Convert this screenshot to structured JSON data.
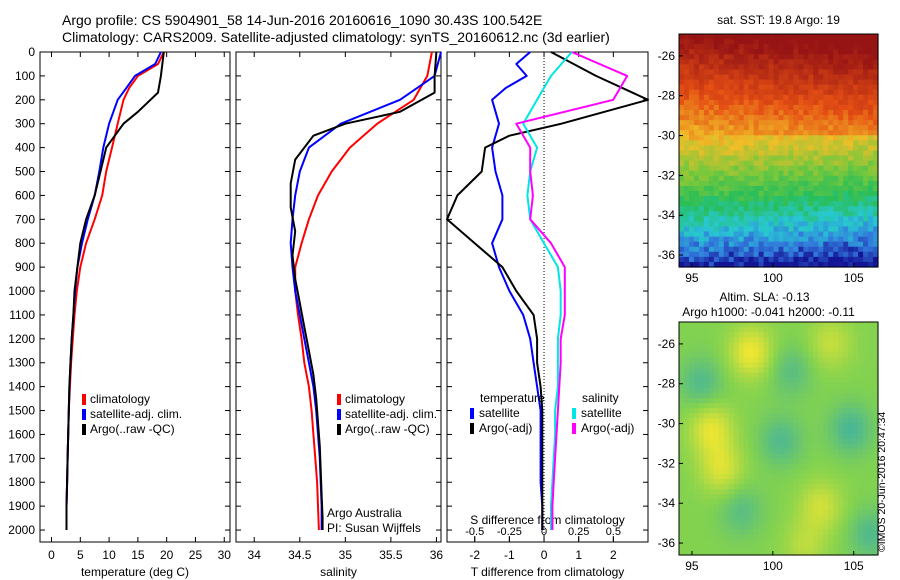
{
  "header": {
    "title_line1": "Argo profile: CS 5904901_58 14-Jun-2016 20160616_1090 30.43S 100.542E",
    "title_line2": "Climatology: CARS2009. Satellite-adjusted climatology: synTS_20160612.nc (3d earlier)"
  },
  "colors": {
    "clim": "#ff0000",
    "sat": "#0000ff",
    "argo": "#000000",
    "sal_sat": "#00e5e5",
    "sal_argo": "#ff00ff"
  },
  "chart_data": [
    {
      "type": "line",
      "name": "temperature-panel",
      "xlabel": "temperature (deg C)",
      "xlim": [
        -2,
        31
      ],
      "ylim": [
        0,
        2050
      ],
      "xticks": [
        0,
        5,
        10,
        15,
        20,
        25,
        30
      ],
      "yticks": [
        0,
        100,
        200,
        300,
        400,
        500,
        600,
        700,
        800,
        900,
        1000,
        1100,
        1200,
        1300,
        1400,
        1500,
        1600,
        1700,
        1800,
        1900,
        2000
      ],
      "legend": [
        "climatology",
        "satellite-adj. clim.",
        "Argo(..raw -QC)"
      ],
      "series": [
        {
          "name": "climatology",
          "color": "clim",
          "points": [
            [
              19.5,
              0
            ],
            [
              18.5,
              50
            ],
            [
              15,
              100
            ],
            [
              13.5,
              150
            ],
            [
              12.5,
              200
            ],
            [
              11.5,
              300
            ],
            [
              10.5,
              400
            ],
            [
              9.5,
              500
            ],
            [
              8.8,
              600
            ],
            [
              7.5,
              700
            ],
            [
              6,
              800
            ],
            [
              5,
              900
            ],
            [
              4.4,
              1000
            ],
            [
              4,
              1100
            ],
            [
              3.7,
              1200
            ],
            [
              3.4,
              1300
            ],
            [
              3.2,
              1400
            ],
            [
              3,
              1500
            ],
            [
              2.9,
              1600
            ],
            [
              2.8,
              1700
            ],
            [
              2.7,
              1800
            ],
            [
              2.6,
              1900
            ],
            [
              2.6,
              2000
            ]
          ]
        },
        {
          "name": "satellite-adj. clim.",
          "color": "sat",
          "points": [
            [
              19,
              0
            ],
            [
              18,
              50
            ],
            [
              14.5,
              100
            ],
            [
              13,
              150
            ],
            [
              11.5,
              200
            ],
            [
              10,
              300
            ],
            [
              9,
              400
            ],
            [
              8.3,
              500
            ],
            [
              7.5,
              600
            ],
            [
              6.3,
              700
            ],
            [
              5.3,
              800
            ],
            [
              4.5,
              900
            ],
            [
              4.1,
              1000
            ],
            [
              3.8,
              1100
            ],
            [
              3.5,
              1200
            ],
            [
              3.3,
              1300
            ],
            [
              3.1,
              1400
            ],
            [
              3,
              1500
            ],
            [
              2.9,
              1600
            ],
            [
              2.8,
              1700
            ],
            [
              2.7,
              1800
            ],
            [
              2.6,
              1900
            ],
            [
              2.6,
              2000
            ]
          ]
        },
        {
          "name": "Argo(..raw -QC)",
          "color": "argo",
          "points": [
            [
              19.5,
              0
            ],
            [
              19,
              100
            ],
            [
              18.5,
              170
            ],
            [
              15,
              250
            ],
            [
              12.5,
              300
            ],
            [
              9.5,
              400
            ],
            [
              8.5,
              500
            ],
            [
              7.5,
              600
            ],
            [
              6,
              700
            ],
            [
              5,
              800
            ],
            [
              4.5,
              900
            ],
            [
              4,
              1000
            ],
            [
              3.8,
              1100
            ],
            [
              3.5,
              1200
            ],
            [
              3.3,
              1300
            ],
            [
              3.1,
              1400
            ],
            [
              3,
              1500
            ],
            [
              2.9,
              1600
            ],
            [
              2.8,
              1700
            ],
            [
              2.7,
              1800
            ],
            [
              2.6,
              1900
            ],
            [
              2.6,
              2000
            ]
          ]
        }
      ]
    },
    {
      "type": "line",
      "name": "salinity-panel",
      "xlabel": "salinity",
      "xlim": [
        33.8,
        36.05
      ],
      "ylim": [
        0,
        2050
      ],
      "xticks": [
        34,
        34.5,
        35,
        35.5,
        36
      ],
      "legend": [
        "climatology",
        "satellite-adj. clim.",
        "Argo(..raw -QC)"
      ],
      "annotation": [
        "Argo Australia",
        "PI: Susan Wijffels"
      ],
      "series": [
        {
          "name": "climatology",
          "color": "clim",
          "points": [
            [
              35.95,
              0
            ],
            [
              35.9,
              100
            ],
            [
              35.75,
              200
            ],
            [
              35.35,
              300
            ],
            [
              35.05,
              400
            ],
            [
              34.85,
              500
            ],
            [
              34.7,
              600
            ],
            [
              34.6,
              700
            ],
            [
              34.52,
              800
            ],
            [
              34.45,
              900
            ],
            [
              34.45,
              1000
            ],
            [
              34.48,
              1100
            ],
            [
              34.52,
              1200
            ],
            [
              34.55,
              1300
            ],
            [
              34.6,
              1400
            ],
            [
              34.63,
              1500
            ],
            [
              34.65,
              1600
            ],
            [
              34.67,
              1700
            ],
            [
              34.69,
              1800
            ],
            [
              34.7,
              1900
            ],
            [
              34.71,
              2000
            ]
          ]
        },
        {
          "name": "satellite-adj. clim.",
          "color": "sat",
          "points": [
            [
              36.05,
              0
            ],
            [
              35.98,
              100
            ],
            [
              35.6,
              200
            ],
            [
              34.95,
              300
            ],
            [
              34.6,
              400
            ],
            [
              34.5,
              500
            ],
            [
              34.45,
              600
            ],
            [
              34.42,
              700
            ],
            [
              34.4,
              800
            ],
            [
              34.42,
              900
            ],
            [
              34.45,
              1000
            ],
            [
              34.5,
              1100
            ],
            [
              34.55,
              1200
            ],
            [
              34.6,
              1300
            ],
            [
              34.65,
              1400
            ],
            [
              34.68,
              1500
            ],
            [
              34.7,
              1600
            ],
            [
              34.72,
              1700
            ],
            [
              34.73,
              1800
            ],
            [
              34.74,
              1900
            ],
            [
              34.74,
              2000
            ]
          ]
        },
        {
          "name": "Argo(..raw -QC)",
          "color": "argo",
          "points": [
            [
              36,
              0
            ],
            [
              35.98,
              100
            ],
            [
              35.98,
              170
            ],
            [
              35.6,
              250
            ],
            [
              35,
              300
            ],
            [
              34.65,
              350
            ],
            [
              34.45,
              450
            ],
            [
              34.4,
              550
            ],
            [
              34.4,
              650
            ],
            [
              34.45,
              750
            ],
            [
              34.42,
              850
            ],
            [
              34.45,
              950
            ],
            [
              34.5,
              1050
            ],
            [
              34.55,
              1150
            ],
            [
              34.6,
              1250
            ],
            [
              34.65,
              1350
            ],
            [
              34.68,
              1450
            ],
            [
              34.7,
              1550
            ],
            [
              34.72,
              1650
            ],
            [
              34.73,
              1750
            ],
            [
              34.74,
              1850
            ],
            [
              34.75,
              1950
            ],
            [
              34.75,
              2000
            ]
          ]
        }
      ]
    },
    {
      "type": "line",
      "name": "difference-panel",
      "xlabel": "T difference from climatology",
      "xlabel2": "S difference from climatology",
      "xlim": [
        -2.8,
        3
      ],
      "ylim": [
        0,
        2050
      ],
      "xticks": [
        -2,
        -1,
        0,
        1,
        2
      ],
      "s_ticks": [
        -0.5,
        -0.25,
        0,
        0.25,
        0.5
      ],
      "legend_headers": [
        "temperature",
        "salinity"
      ],
      "legend": [
        "satellite",
        "Argo(-adj)",
        "satellite",
        "Argo(-adj)"
      ],
      "series": [
        {
          "name": "T satellite",
          "color": "sat",
          "points": [
            [
              -0.4,
              0
            ],
            [
              -0.8,
              50
            ],
            [
              -0.5,
              100
            ],
            [
              -1.1,
              150
            ],
            [
              -1.5,
              200
            ],
            [
              -1.3,
              300
            ],
            [
              -1.5,
              400
            ],
            [
              -1.4,
              500
            ],
            [
              -1.2,
              600
            ],
            [
              -1.2,
              700
            ],
            [
              -1.5,
              800
            ],
            [
              -1.3,
              900
            ],
            [
              -1.0,
              1000
            ],
            [
              -0.6,
              1100
            ],
            [
              -0.4,
              1200
            ],
            [
              -0.3,
              1300
            ],
            [
              -0.2,
              1400
            ],
            [
              -0.1,
              1500
            ],
            [
              -0.1,
              1600
            ],
            [
              -0.1,
              1700
            ],
            [
              -0.1,
              1800
            ],
            [
              -0.05,
              1900
            ],
            [
              -0.05,
              2000
            ]
          ]
        },
        {
          "name": "T Argo(-adj)",
          "color": "argo",
          "points": [
            [
              0.2,
              0
            ],
            [
              1.5,
              100
            ],
            [
              3,
              200
            ],
            [
              0.5,
              300
            ],
            [
              -1,
              350
            ],
            [
              -1.7,
              400
            ],
            [
              -1.8,
              500
            ],
            [
              -2.5,
              600
            ],
            [
              -2.8,
              700
            ],
            [
              -2,
              800
            ],
            [
              -1.2,
              900
            ],
            [
              -0.8,
              1000
            ],
            [
              -0.3,
              1100
            ],
            [
              -0.2,
              1200
            ],
            [
              -0.2,
              1300
            ],
            [
              -0.1,
              1400
            ],
            [
              -0.05,
              1500
            ],
            [
              -0.05,
              1700
            ],
            [
              -0.05,
              1900
            ],
            [
              -0.05,
              2000
            ]
          ]
        },
        {
          "name": "S satellite",
          "color": "sal_sat",
          "points": [
            [
              0.2,
              0
            ],
            [
              0.05,
              100
            ],
            [
              -0.05,
              200
            ],
            [
              -0.15,
              300
            ],
            [
              -0.05,
              400
            ],
            [
              -0.1,
              500
            ],
            [
              -0.12,
              600
            ],
            [
              -0.1,
              700
            ],
            [
              0,
              800
            ],
            [
              0.1,
              900
            ],
            [
              0.12,
              1000
            ],
            [
              0.12,
              1100
            ],
            [
              0.1,
              1200
            ],
            [
              0.1,
              1300
            ],
            [
              0.1,
              1400
            ],
            [
              0.08,
              1500
            ],
            [
              0.08,
              1600
            ],
            [
              0.07,
              1700
            ],
            [
              0.06,
              1800
            ],
            [
              0.05,
              1900
            ],
            [
              0.05,
              2000
            ]
          ]
        },
        {
          "name": "S Argo(-adj)",
          "color": "sal_argo",
          "points": [
            [
              0.2,
              0
            ],
            [
              0.6,
              100
            ],
            [
              0.5,
              200
            ],
            [
              -0.2,
              300
            ],
            [
              -0.1,
              400
            ],
            [
              -0.1,
              500
            ],
            [
              -0.08,
              600
            ],
            [
              -0.1,
              700
            ],
            [
              0.05,
              800
            ],
            [
              0.15,
              900
            ],
            [
              0.15,
              1000
            ],
            [
              0.15,
              1100
            ],
            [
              0.12,
              1200
            ],
            [
              0.12,
              1300
            ],
            [
              0.11,
              1400
            ],
            [
              0.1,
              1500
            ],
            [
              0.09,
              1600
            ],
            [
              0.08,
              1700
            ],
            [
              0.07,
              1800
            ],
            [
              0.06,
              1900
            ],
            [
              0.06,
              2000
            ]
          ]
        }
      ]
    },
    {
      "type": "heatmap",
      "name": "sst-map",
      "title": "sat. SST: 19.8 Argo: 19",
      "xticks": [
        95,
        100,
        105
      ],
      "yticks": [
        -26,
        -28,
        -30,
        -32,
        -34,
        -36
      ],
      "xlim": [
        94.2,
        106.5
      ],
      "ylim": [
        -36.6,
        -24.9
      ]
    },
    {
      "type": "heatmap",
      "name": "sla-map",
      "title_line1": "Altim. SLA: -0.13",
      "title_line2": "Argo h1000: -0.041 h2000: -0.11",
      "xticks": [
        95,
        100,
        105
      ],
      "yticks": [
        -26,
        -28,
        -30,
        -32,
        -34,
        -36
      ],
      "xlim": [
        94.2,
        106.5
      ],
      "ylim": [
        -36.6,
        -24.9
      ]
    }
  ],
  "footer": {
    "copyright": "©IMOS 20-Jun-2016 20:47:34"
  }
}
